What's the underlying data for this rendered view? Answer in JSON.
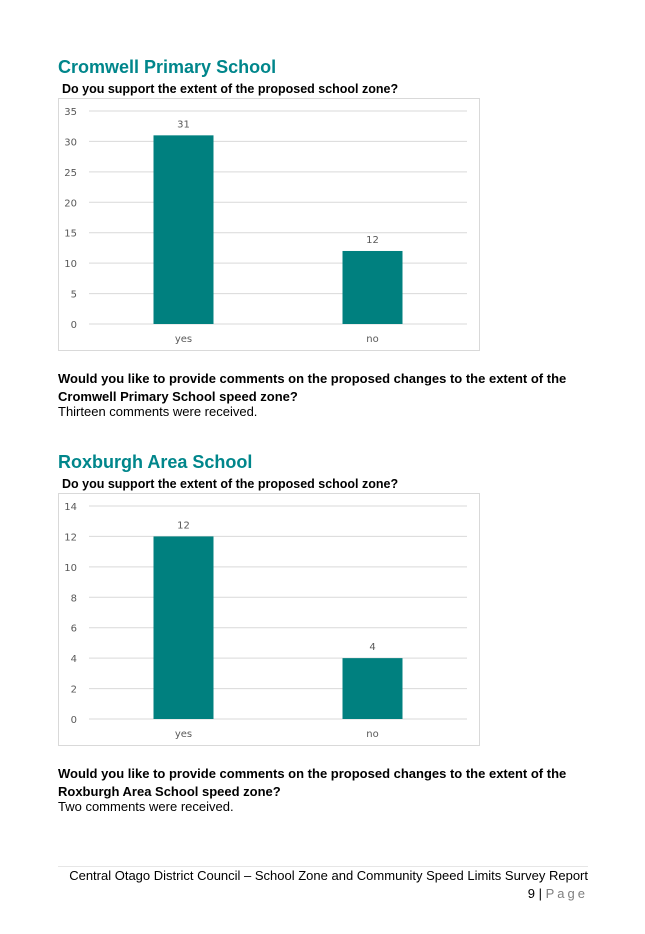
{
  "sections": [
    {
      "title": "Cromwell Primary School",
      "question": "Do you support the extent of the proposed school zone?",
      "comments_question": "Would you like to provide comments on the proposed changes to the extent of the Cromwell Primary School speed zone?",
      "comments_answer": "Thirteen comments were received."
    },
    {
      "title": "Roxburgh Area School",
      "question": "Do you support the extent of the proposed school zone?",
      "comments_question": "Would you like to provide comments on the proposed changes to the extent of the Roxburgh Area School speed zone?",
      "comments_answer": "Two comments were received."
    }
  ],
  "chart_data": [
    {
      "type": "bar",
      "categories": [
        "yes",
        "no"
      ],
      "values": [
        31,
        12
      ],
      "ylim": [
        0,
        35
      ],
      "yticks": [
        0,
        5,
        10,
        15,
        20,
        25,
        30,
        35
      ],
      "grid": true,
      "bar_color": "#00807F"
    },
    {
      "type": "bar",
      "categories": [
        "yes",
        "no"
      ],
      "values": [
        12,
        4
      ],
      "ylim": [
        0,
        14
      ],
      "yticks": [
        0,
        2,
        4,
        6,
        8,
        10,
        12,
        14
      ],
      "grid": true,
      "bar_color": "#00807F"
    }
  ],
  "footer": {
    "report_title": "Central Otago District Council – School Zone and Community Speed Limits Survey Report",
    "page_number": "9",
    "separator": "|",
    "page_word": "Page"
  },
  "colors": {
    "heading": "#00868B",
    "bar": "#00807F",
    "gridline": "#d9d9d9",
    "axis_text": "#595959"
  }
}
